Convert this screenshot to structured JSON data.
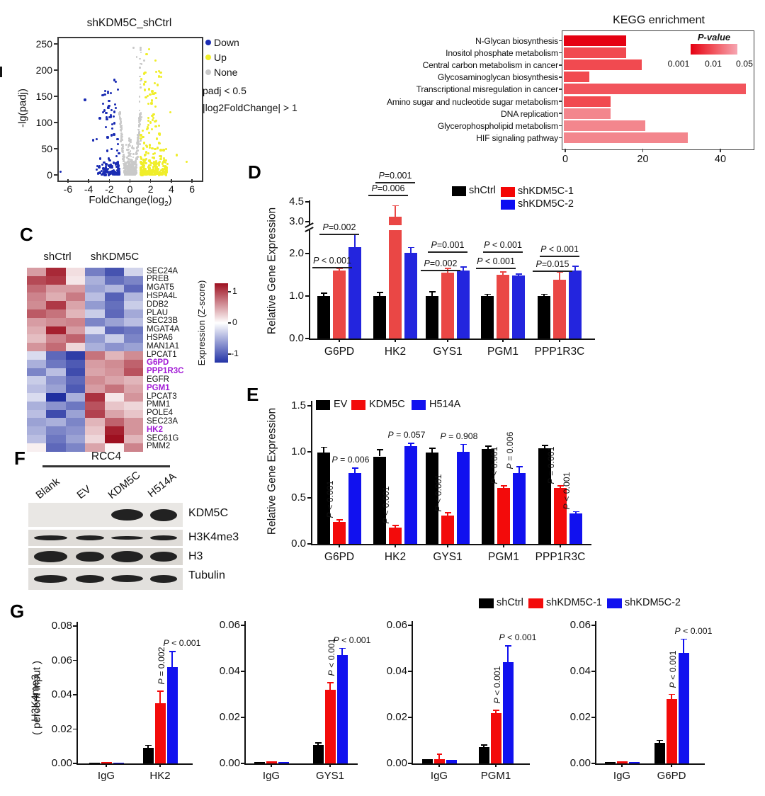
{
  "chart_data": {
    "volcano": {
      "type": "scatter",
      "title": "shKDM5C_shCtrl",
      "ylabel": "-lg(padj)",
      "xlabel": "FoldChange(log2)",
      "xlabel_main": "FoldChange(log",
      "xlabel_sub": "2",
      "xlabel_close": ")",
      "xlim": [
        -7,
        7
      ],
      "ylim": [
        0,
        250
      ],
      "xticks": [
        -6,
        -4,
        -2,
        0,
        2,
        4,
        6
      ],
      "yticks": [
        0,
        50,
        100,
        150,
        200,
        250
      ],
      "legend": [
        {
          "label": "Down",
          "color": "#1b2cb3"
        },
        {
          "label": "Up",
          "color": "#f0ee2a"
        },
        {
          "label": "None",
          "color": "#c9c9c9"
        }
      ],
      "annotations": [
        "padj < 0.5",
        "|log2FoldChange| > 1"
      ]
    },
    "kegg": {
      "type": "bar",
      "orientation": "horizontal",
      "title": "KEGG enrichment",
      "xticks": [
        0,
        20,
        40
      ],
      "xlim": [
        0,
        49
      ],
      "pvalue_legend": {
        "title": "P-value",
        "labels": [
          "0.001",
          "0.01",
          "0.05"
        ],
        "colors": [
          "#e50112",
          "#f1555e",
          "#f6a6b2"
        ]
      },
      "bars": [
        {
          "label": "N-Glycan biosynthesis",
          "value": 16,
          "color": "#e50112"
        },
        {
          "label": "Inositol phosphate metabolism",
          "value": 16,
          "color": "#f14a50"
        },
        {
          "label": "Central carbon metabolism in cancer",
          "value": 20,
          "color": "#f14a50"
        },
        {
          "label": "Glycosaminoglycan biosynthesis",
          "value": 6.5,
          "color": "#f14a50"
        },
        {
          "label": "Transcriptional misregulation in cancer",
          "value": 47,
          "color": "#f2545c"
        },
        {
          "label": "Amino sugar and nucleotide sugar metabolism",
          "value": 12,
          "color": "#f14a50"
        },
        {
          "label": "DNA replication",
          "value": 12,
          "color": "#f3868d"
        },
        {
          "label": "Glycerophospholipid metabolism",
          "value": 21,
          "color": "#f3868d"
        },
        {
          "label": "HIF signaling pathway",
          "value": 32,
          "color": "#f3868d"
        }
      ]
    },
    "heatmap": {
      "type": "heatmap",
      "panel_letter": "C",
      "col_groups": [
        "shCtrl",
        "shKDM5C"
      ],
      "colorbar": {
        "label": "Expression (Z-score)",
        "ticks": [
          "1",
          "0",
          "-1"
        ]
      },
      "highlight_color": "#a21bd6",
      "highlighted_genes": [
        "G6PD",
        "PPP1R3C",
        "PGM1",
        "HK2"
      ],
      "genes": [
        "SEC24A",
        "PREB",
        "MGAT5",
        "HSPA4L",
        "DDB2",
        "PLAU",
        "SEC23B",
        "MGAT4A",
        "HSPA6",
        "MAN1A1",
        "LPCAT1",
        "G6PD",
        "PPP1R3C",
        "EGFR",
        "PGM1",
        "LPCAT3",
        "PMM1",
        "POLE4",
        "SEC23A",
        "HK2",
        "SEC61G",
        "PMM2"
      ],
      "values": [
        [
          0.6,
          1.3,
          0.2,
          -0.9,
          -1.2,
          -0.3
        ],
        [
          1.1,
          1.2,
          0.15,
          -0.55,
          -1.0,
          -0.85
        ],
        [
          0.9,
          0.6,
          0.6,
          -0.65,
          -0.5,
          -1.05
        ],
        [
          0.75,
          0.5,
          0.8,
          -0.45,
          -1.1,
          -0.5
        ],
        [
          0.7,
          1.2,
          0.55,
          -0.7,
          -1.0,
          -0.35
        ],
        [
          1.0,
          0.85,
          0.45,
          -0.35,
          -1.05,
          -0.6
        ],
        [
          0.6,
          0.7,
          0.75,
          -0.85,
          -0.65,
          -0.45
        ],
        [
          0.5,
          1.35,
          0.6,
          -0.25,
          -1.05,
          -0.95
        ],
        [
          0.4,
          0.75,
          0.95,
          -0.7,
          -0.35,
          -0.85
        ],
        [
          0.65,
          0.9,
          0.25,
          -0.55,
          -0.75,
          -0.65
        ],
        [
          -0.25,
          -1.05,
          -1.35,
          0.85,
          0.45,
          0.7
        ],
        [
          -0.55,
          -0.95,
          -1.15,
          0.6,
          0.7,
          0.95
        ],
        [
          -0.85,
          -0.45,
          -1.25,
          0.55,
          0.65,
          1.05
        ],
        [
          -0.35,
          -0.75,
          -1.05,
          0.7,
          0.55,
          0.45
        ],
        [
          -0.45,
          -0.65,
          -1.15,
          0.6,
          0.85,
          0.55
        ],
        [
          -0.25,
          -1.45,
          -0.55,
          1.25,
          0.15,
          0.65
        ],
        [
          -0.55,
          -0.75,
          -0.95,
          1.05,
          0.35,
          0.25
        ],
        [
          -0.45,
          -1.25,
          -0.65,
          1.15,
          0.55,
          0.35
        ],
        [
          -0.65,
          -0.55,
          -0.85,
          0.45,
          0.95,
          0.65
        ],
        [
          -0.55,
          -0.85,
          -0.75,
          0.35,
          1.35,
          0.65
        ],
        [
          -0.45,
          -0.95,
          -0.65,
          0.25,
          1.5,
          0.45
        ],
        [
          0.1,
          -1.05,
          -0.85,
          0.55,
          0.05,
          0.75
        ]
      ]
    },
    "panel_d": {
      "type": "bar",
      "panel_letter": "D",
      "ylabel": "Relative Gene Expression",
      "yticks_lower": [
        "0.0",
        "1.0",
        "2.0"
      ],
      "yticks_upper": [
        "3.0",
        "4.5"
      ],
      "axis_break": true,
      "legend": [
        {
          "label": "shCtrl",
          "color": "#000000"
        },
        {
          "label": "shKDM5C-1",
          "color": "#f40606"
        },
        {
          "label": "shKDM5C-2",
          "color": "#0b0bf2"
        }
      ],
      "bar_colors": [
        "#000000",
        "#ea4745",
        "#2325de"
      ],
      "groups": [
        {
          "label": "G6PD",
          "values": [
            1.0,
            1.6,
            2.15
          ],
          "errors": [
            0.07,
            0.05,
            0.3
          ],
          "p1": "P < 0.001",
          "p2": "P=0.002"
        },
        {
          "label": "HK2",
          "values": [
            1.0,
            3.4,
            2.02
          ],
          "errors": [
            0.08,
            0.8,
            0.12
          ],
          "p1": "P=0.006",
          "p2": "P=0.001"
        },
        {
          "label": "GYS1",
          "values": [
            1.0,
            1.55,
            1.6
          ],
          "errors": [
            0.1,
            0.1,
            0.08
          ],
          "p1": "P=0.002",
          "p2": "P=0.001"
        },
        {
          "label": "PGM1",
          "values": [
            1.0,
            1.5,
            1.48
          ],
          "errors": [
            0.04,
            0.07,
            0.04
          ],
          "p1": "P < 0.001",
          "p2": "P < 0.001"
        },
        {
          "label": "PPP1R3C",
          "values": [
            1.0,
            1.38,
            1.6
          ],
          "errors": [
            0.04,
            0.18,
            0.1
          ],
          "p1": "P=0.015",
          "p2": "P < 0.001"
        }
      ]
    },
    "panel_e": {
      "type": "bar",
      "panel_letter": "E",
      "ylabel": "Relative Gene Expression",
      "yticks": [
        "0.0",
        "0.5",
        "1.0",
        "1.5"
      ],
      "legend": [
        {
          "label": "EV",
          "color": "#000000"
        },
        {
          "label": "KDM5C",
          "color": "#f30b0b"
        },
        {
          "label": "H514A",
          "color": "#1111ef"
        }
      ],
      "bar_colors": [
        "#000000",
        "#f30b0b",
        "#1111ef"
      ],
      "groups": [
        {
          "label": "G6PD",
          "values": [
            0.99,
            0.24,
            0.77
          ],
          "errors": [
            0.06,
            0.02,
            0.05
          ],
          "p_red": "P < 0.001",
          "p_blue": "P = 0.006",
          "blue_style": "h"
        },
        {
          "label": "HK2",
          "values": [
            0.95,
            0.18,
            1.06
          ],
          "errors": [
            0.07,
            0.02,
            0.03
          ],
          "p_red": "P < 0.001",
          "p_blue": "P = 0.057",
          "blue_style": "h"
        },
        {
          "label": "GYS1",
          "values": [
            0.99,
            0.31,
            1.0
          ],
          "errors": [
            0.05,
            0.03,
            0.08
          ],
          "p_red": "P < 0.001",
          "p_blue": "P = 0.908",
          "blue_style": "h"
        },
        {
          "label": "PGM1",
          "values": [
            1.03,
            0.61,
            0.77
          ],
          "errors": [
            0.03,
            0.02,
            0.07
          ],
          "p_red": "P < 0.001",
          "p_blue": "P = 0.006",
          "blue_style": "v"
        },
        {
          "label": "PPP1R3C",
          "values": [
            1.04,
            0.61,
            0.33
          ],
          "errors": [
            0.03,
            0.02,
            0.02
          ],
          "p_red": "P = 0.001",
          "p_blue": "P < 0.001",
          "blue_style": "v"
        }
      ]
    },
    "western": {
      "panel_letter": "F",
      "cell_line": "RCC4",
      "lanes": [
        "Blank",
        "EV",
        "KDM5C",
        "H514A"
      ],
      "rows": [
        {
          "label": "KDM5C",
          "bands": [
            0,
            0,
            0.9,
            1.0
          ]
        },
        {
          "label": "H3K4me3",
          "bands": [
            0.8,
            0.7,
            0.3,
            0.75
          ]
        },
        {
          "label": "H3",
          "bands": [
            0.95,
            0.85,
            1.0,
            0.7
          ]
        },
        {
          "label": "Tubulin",
          "bands": [
            0.9,
            0.85,
            0.8,
            0.9
          ]
        }
      ]
    },
    "chip": {
      "type": "bar",
      "panel_letter": "G",
      "ylabel_line1": "H3K4me3",
      "ylabel_line2": "( percent input )",
      "legend": [
        {
          "label": "shCtrl",
          "color": "#000000"
        },
        {
          "label": "shKDM5C-1",
          "color": "#f30b0b"
        },
        {
          "label": "shKDM5C-2",
          "color": "#1111ef"
        }
      ],
      "bar_colors": [
        "#000000",
        "#f30b0b",
        "#1111ef"
      ],
      "charts": [
        {
          "gene": "HK2",
          "igg_label": "IgG",
          "ymax": 0.08,
          "yticks": [
            "0.00",
            "0.02",
            "0.04",
            "0.06",
            "0.08"
          ],
          "igg": [
            0.0006,
            0.001,
            0.0006
          ],
          "igg_err": [
            0.0002,
            0.0008,
            0.0002
          ],
          "values": [
            0.009,
            0.035,
            0.056
          ],
          "errors": [
            0.0015,
            0.007,
            0.009
          ],
          "p_red": "P = 0.002",
          "p_blue": "P < 0.001"
        },
        {
          "gene": "GYS1",
          "igg_label": "IgG",
          "ymax": 0.06,
          "yticks": [
            "0.00",
            "0.02",
            "0.04",
            "0.06"
          ],
          "igg": [
            0.0005,
            0.0008,
            0.0005
          ],
          "igg_err": [
            0.0002,
            0.0006,
            0.0002
          ],
          "values": [
            0.008,
            0.032,
            0.047
          ],
          "errors": [
            0.001,
            0.003,
            0.003
          ],
          "p_red": "P < 0.001",
          "p_blue": "P < 0.001"
        },
        {
          "gene": "PGM1",
          "igg_label": "IgG",
          "ymax": 0.06,
          "yticks": [
            "0.00",
            "0.02",
            "0.04",
            "0.06"
          ],
          "igg": [
            0.002,
            0.002,
            0.0015
          ],
          "igg_err": [
            0.0006,
            0.002,
            0.0004
          ],
          "values": [
            0.007,
            0.022,
            0.044
          ],
          "errors": [
            0.001,
            0.001,
            0.007
          ],
          "p_red": "P < 0.001",
          "p_blue": "P < 0.001"
        },
        {
          "gene": "G6PD",
          "igg_label": "IgG",
          "ymax": 0.06,
          "yticks": [
            "0.00",
            "0.02",
            "0.04",
            "0.06"
          ],
          "igg": [
            0.0005,
            0.0008,
            0.0006
          ],
          "igg_err": [
            0.0002,
            0.0005,
            0.0002
          ],
          "values": [
            0.009,
            0.028,
            0.048
          ],
          "errors": [
            0.001,
            0.002,
            0.006
          ],
          "p_red": "P < 0.001",
          "p_blue": "P < 0.001"
        }
      ]
    }
  }
}
